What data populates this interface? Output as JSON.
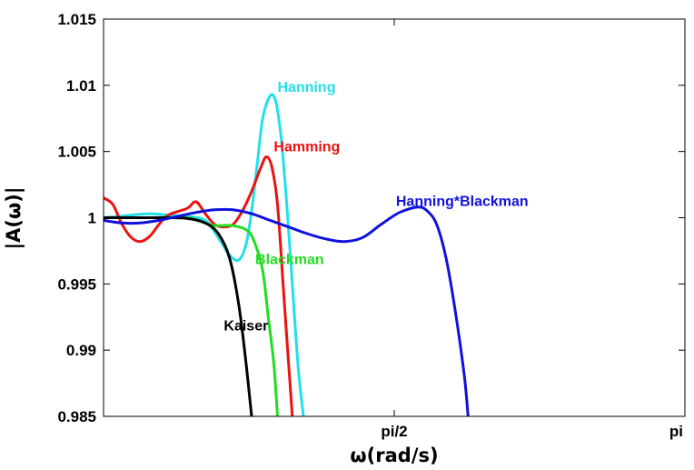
{
  "chart_data": {
    "type": "line",
    "title": "",
    "xlabel": "ω(rad/s)",
    "ylabel": "|A(ω)|",
    "xlim": [
      0,
      3.14159
    ],
    "ylim": [
      0.985,
      1.015
    ],
    "grid": false,
    "y_ticks": [
      {
        "value": 1.015,
        "label": "1.015"
      },
      {
        "value": 1.01,
        "label": "1.01"
      },
      {
        "value": 1.005,
        "label": "1.005"
      },
      {
        "value": 1.0,
        "label": "1"
      },
      {
        "value": 0.995,
        "label": "0.995"
      },
      {
        "value": 0.99,
        "label": "0.99"
      },
      {
        "value": 0.985,
        "label": "0.985"
      }
    ],
    "x_ticks": [
      {
        "value": 1.5708,
        "label": "pi/2"
      },
      {
        "value": 3.14159,
        "label": "pi"
      }
    ],
    "series": [
      {
        "name": "Hanning",
        "color": "#22e0e8",
        "label_at": [
          0.94,
          1.0095
        ],
        "points": [
          [
            0,
            1.0
          ],
          [
            0.08,
            1.0001
          ],
          [
            0.15,
            1.0002
          ],
          [
            0.25,
            1.0003
          ],
          [
            0.35,
            1.0002
          ],
          [
            0.45,
            1.0001
          ],
          [
            0.55,
            0.9998
          ],
          [
            0.62,
            0.9985
          ],
          [
            0.68,
            0.9972
          ],
          [
            0.73,
            0.9968
          ],
          [
            0.77,
            0.998
          ],
          [
            0.8,
            1.0005
          ],
          [
            0.83,
            1.004
          ],
          [
            0.86,
            1.0075
          ],
          [
            0.9,
            1.0092
          ],
          [
            0.93,
            1.0088
          ],
          [
            0.96,
            1.006
          ],
          [
            0.99,
            1.001
          ],
          [
            1.02,
            0.995
          ],
          [
            1.05,
            0.989
          ],
          [
            1.08,
            0.985
          ]
        ]
      },
      {
        "name": "Hamming",
        "color": "#ee1111",
        "label_at": [
          0.92,
          1.005
        ],
        "points": [
          [
            0,
            1.0015
          ],
          [
            0.05,
            1.001
          ],
          [
            0.1,
            0.9995
          ],
          [
            0.15,
            0.9985
          ],
          [
            0.2,
            0.9982
          ],
          [
            0.25,
            0.9986
          ],
          [
            0.3,
            0.9995
          ],
          [
            0.35,
            1.0002
          ],
          [
            0.45,
            1.0007
          ],
          [
            0.5,
            1.0012
          ],
          [
            0.55,
            1.0003
          ],
          [
            0.6,
            0.9995
          ],
          [
            0.65,
            0.9993
          ],
          [
            0.7,
            0.9995
          ],
          [
            0.75,
            1.0005
          ],
          [
            0.8,
            1.002
          ],
          [
            0.85,
            1.0038
          ],
          [
            0.88,
            1.0046
          ],
          [
            0.91,
            1.0038
          ],
          [
            0.94,
            1.001
          ],
          [
            0.97,
            0.995
          ],
          [
            1.0,
            0.989
          ],
          [
            1.02,
            0.985
          ]
        ]
      },
      {
        "name": "Blackman",
        "color": "#22dd22",
        "label_at": [
          0.82,
          0.9965
        ],
        "points": [
          [
            0,
            1.0
          ],
          [
            0.25,
            1.0
          ],
          [
            0.45,
            1.0
          ],
          [
            0.55,
            0.9996
          ],
          [
            0.6,
            0.9994
          ],
          [
            0.7,
            0.9994
          ],
          [
            0.78,
            0.999
          ],
          [
            0.82,
            0.998
          ],
          [
            0.86,
            0.996
          ],
          [
            0.89,
            0.9925
          ],
          [
            0.92,
            0.989
          ],
          [
            0.94,
            0.985
          ]
        ]
      },
      {
        "name": "Kaiser",
        "color": "#000000",
        "label_at": [
          0.65,
          0.9915
        ],
        "points": [
          [
            0,
            1.0
          ],
          [
            0.3,
            1.0
          ],
          [
            0.45,
            0.99995
          ],
          [
            0.55,
            0.9996
          ],
          [
            0.62,
            0.9988
          ],
          [
            0.68,
            0.997
          ],
          [
            0.73,
            0.9935
          ],
          [
            0.77,
            0.989
          ],
          [
            0.8,
            0.985
          ]
        ]
      },
      {
        "name": "Hanning*Blackman",
        "color": "#1111dd",
        "label_at": [
          1.58,
          1.0009
        ],
        "points": [
          [
            0,
            0.9998
          ],
          [
            0.1,
            0.9996
          ],
          [
            0.2,
            0.9996
          ],
          [
            0.3,
            0.9998
          ],
          [
            0.4,
            1.0001
          ],
          [
            0.5,
            1.0004
          ],
          [
            0.6,
            1.0006
          ],
          [
            0.7,
            1.0006
          ],
          [
            0.8,
            1.0003
          ],
          [
            0.9,
            0.9998
          ],
          [
            1.0,
            0.9993
          ],
          [
            1.1,
            0.9988
          ],
          [
            1.2,
            0.9984
          ],
          [
            1.3,
            0.9982
          ],
          [
            1.4,
            0.9985
          ],
          [
            1.5,
            0.9995
          ],
          [
            1.6,
            1.0004
          ],
          [
            1.7,
            1.0008
          ],
          [
            1.75,
            1.0005
          ],
          [
            1.8,
            0.9995
          ],
          [
            1.85,
            0.997
          ],
          [
            1.9,
            0.993
          ],
          [
            1.95,
            0.988
          ],
          [
            1.97,
            0.985
          ]
        ]
      }
    ]
  }
}
